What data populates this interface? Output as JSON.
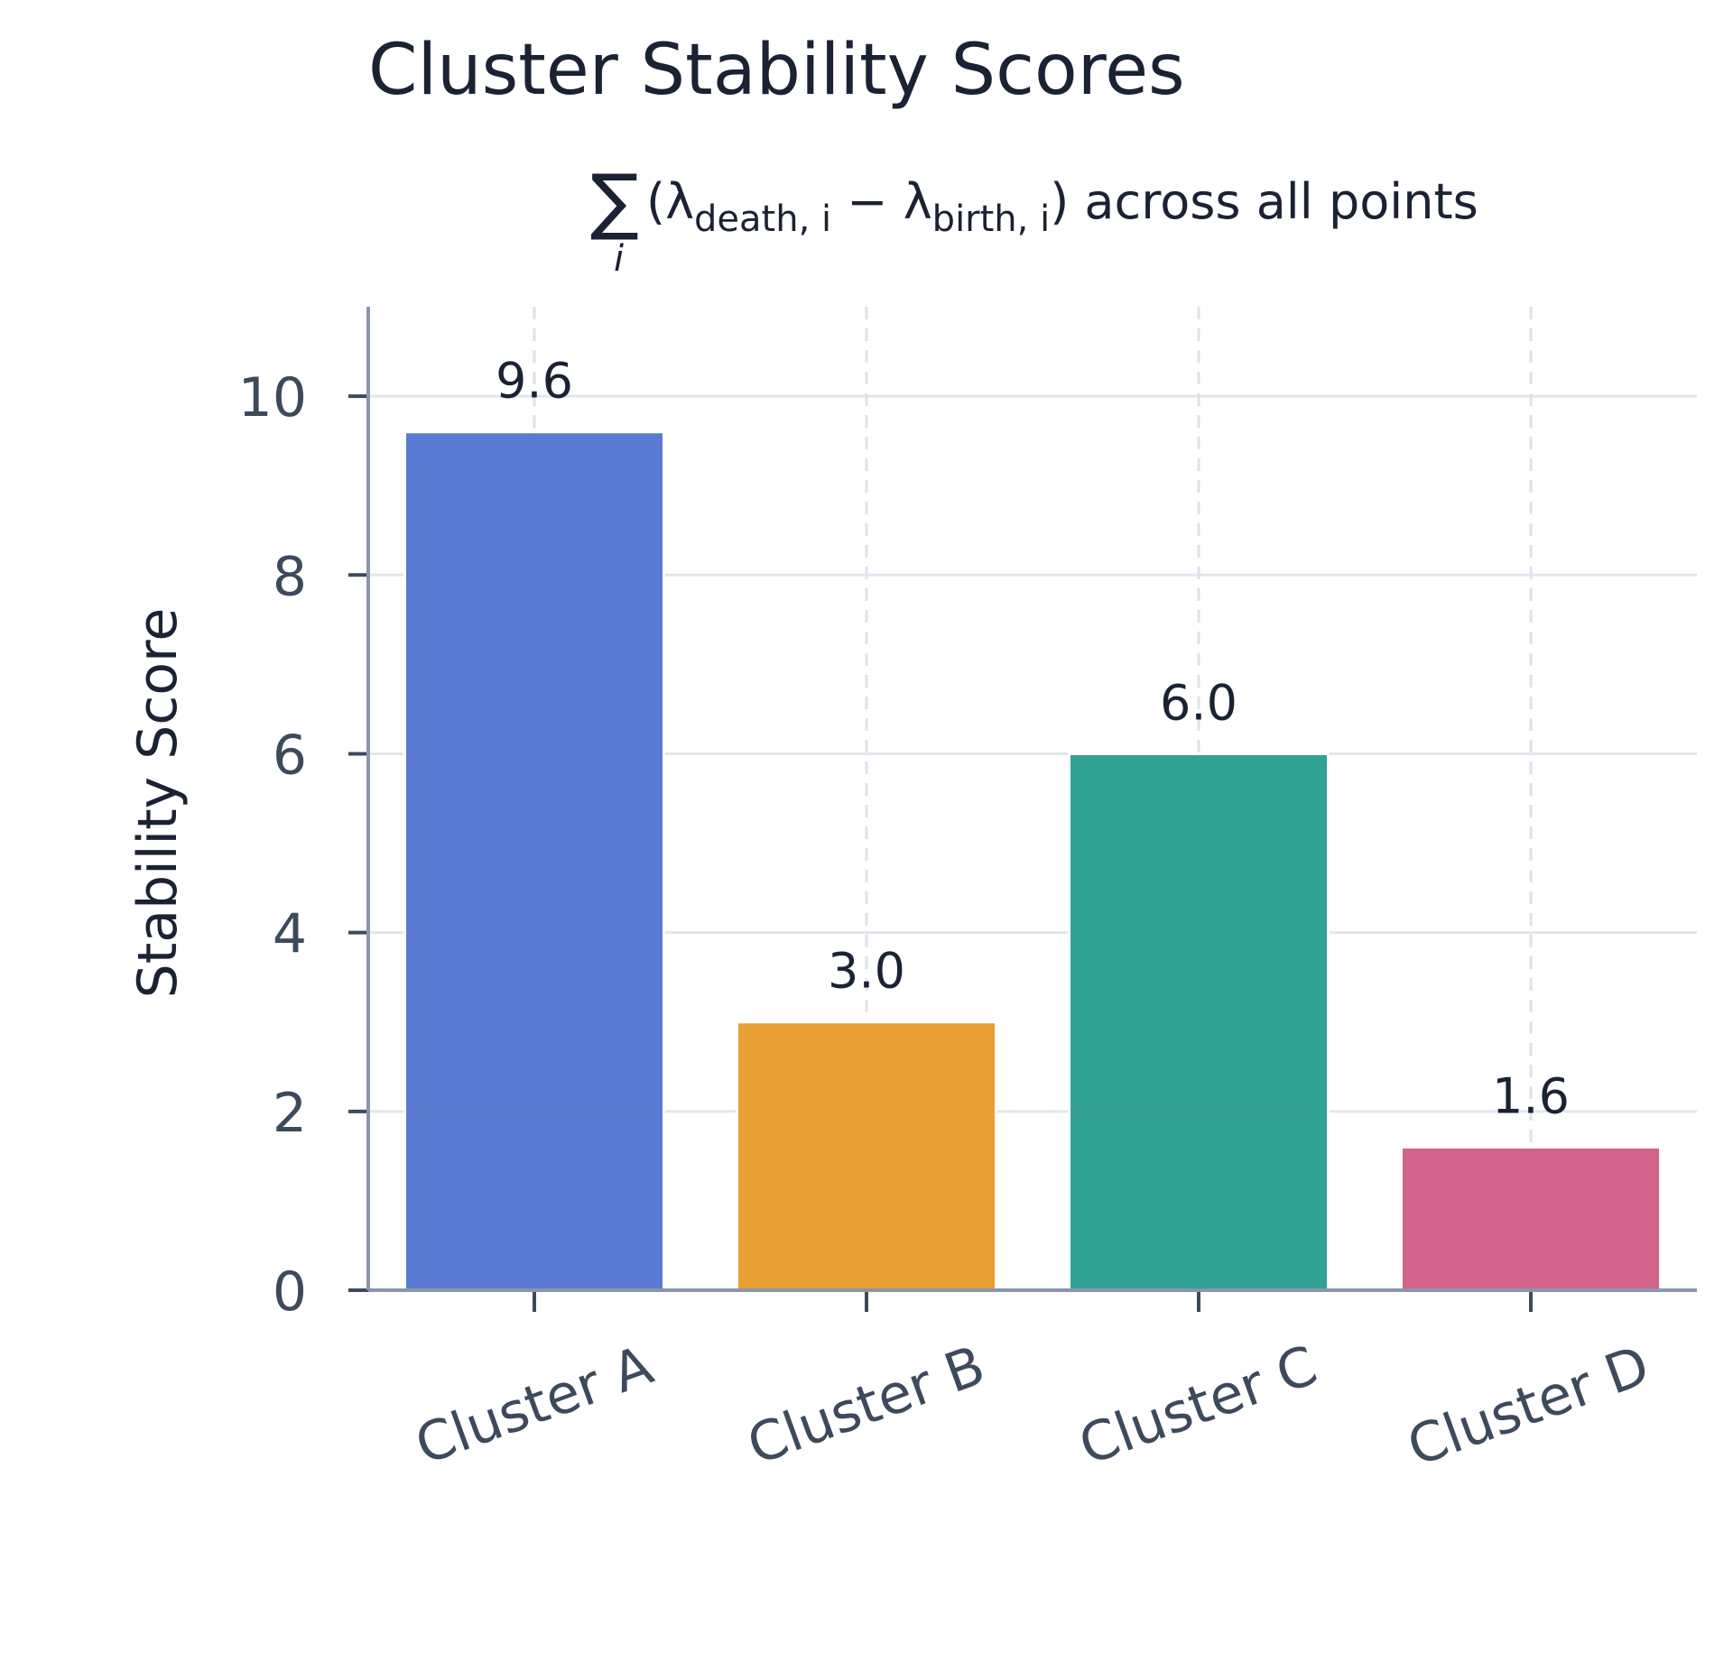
{
  "chart_data": {
    "type": "bar",
    "title": "Cluster Stability Scores",
    "subtitle": {
      "sigma": "∑",
      "index": "i",
      "open": "(λ",
      "death_sub": "death, i",
      "minus": " − λ",
      "birth_sub": "birth, i",
      "close": ") across all points"
    },
    "ylabel": "Stability Score",
    "xlabel": "",
    "categories": [
      "Cluster A",
      "Cluster B",
      "Cluster C",
      "Cluster D"
    ],
    "values": [
      9.6,
      3.0,
      6.0,
      1.6
    ],
    "value_labels": [
      "9.6",
      "3.0",
      "6.0",
      "1.6"
    ],
    "colors": [
      "#5577d0",
      "#e89d2e",
      "#2c9f92",
      "#cf5f87"
    ],
    "ylim": [
      0,
      11
    ],
    "yticks": [
      0,
      2,
      4,
      6,
      8,
      10
    ],
    "grid": true,
    "legend": "none"
  }
}
